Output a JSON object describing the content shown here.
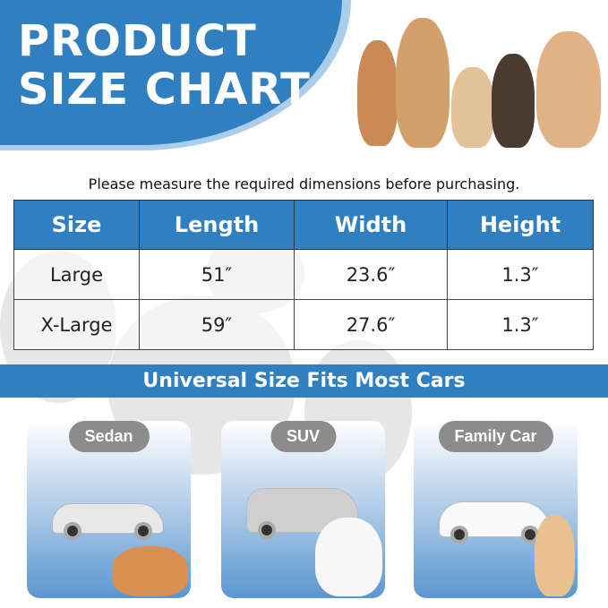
{
  "header": {
    "title_line1": "PRODUCT",
    "title_line2": "SIZE CHART"
  },
  "subtitle": "Please measure the required dimensions before purchasing.",
  "table": {
    "headers": [
      "Size",
      "Length",
      "Width",
      "Height"
    ],
    "rows": [
      [
        "Large",
        "51″",
        "23.6″",
        "1.3″"
      ],
      [
        "X-Large",
        "59″",
        "27.6″",
        "1.3″"
      ]
    ]
  },
  "banner": "Universal Size Fits Most Cars",
  "cars": [
    {
      "label": "Sedan"
    },
    {
      "label": "SUV"
    },
    {
      "label": "Family Car"
    }
  ],
  "colors": {
    "accent": "#2f7fc1",
    "pill": "#8c8c8c"
  }
}
